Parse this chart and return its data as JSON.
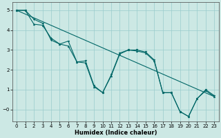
{
  "xlabel": "Humidex (Indice chaleur)",
  "bg_color": "#cce8e4",
  "grid_color": "#99cccc",
  "line_color": "#006666",
  "xlim": [
    -0.5,
    23.5
  ],
  "ylim": [
    -0.6,
    5.4
  ],
  "xticks": [
    0,
    1,
    2,
    3,
    4,
    5,
    6,
    7,
    8,
    9,
    10,
    11,
    12,
    13,
    14,
    15,
    16,
    17,
    18,
    19,
    20,
    21,
    22,
    23
  ],
  "yticks": [
    0,
    1,
    2,
    3,
    4,
    5
  ],
  "ytick_labels": [
    "−0",
    "1",
    "2",
    "3",
    "4",
    "5"
  ],
  "line1_x": [
    0,
    1,
    2,
    3,
    4,
    5,
    6,
    7,
    8,
    9,
    10,
    11,
    12,
    13,
    14,
    15,
    16,
    17,
    18,
    19,
    20,
    21,
    22,
    23
  ],
  "line1_y": [
    5.0,
    5.0,
    4.55,
    4.35,
    3.5,
    3.3,
    3.45,
    2.4,
    2.45,
    1.2,
    0.85,
    1.75,
    2.85,
    3.0,
    3.0,
    2.9,
    2.5,
    0.85,
    0.85,
    -0.1,
    -0.35,
    0.55,
    1.0,
    0.7
  ],
  "line2_x": [
    0,
    1,
    2,
    3,
    4,
    5,
    6,
    7,
    8,
    9,
    10,
    11,
    12,
    13,
    14,
    15,
    16,
    17,
    18,
    19,
    20,
    21,
    22,
    23
  ],
  "line2_y": [
    5.0,
    5.0,
    4.3,
    4.25,
    3.6,
    3.3,
    3.2,
    2.4,
    2.35,
    1.15,
    0.85,
    1.7,
    2.8,
    3.0,
    2.95,
    2.85,
    2.45,
    0.85,
    0.85,
    -0.1,
    -0.35,
    0.55,
    0.95,
    0.65
  ],
  "line3_x": [
    0,
    23
  ],
  "line3_y": [
    5.0,
    0.65
  ],
  "tick_fontsize": 5.0,
  "xlabel_fontsize": 6.0
}
